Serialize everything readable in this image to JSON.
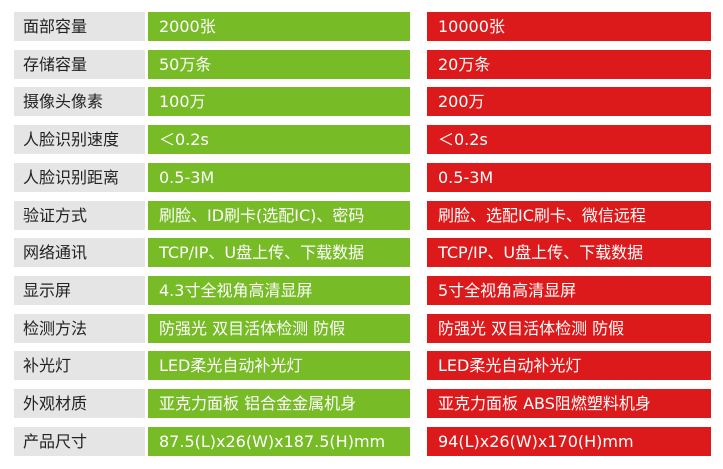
{
  "colors": {
    "label_bg": "#e5e5e5",
    "left_product": "#77bb26",
    "right_product": "#dd1a1b"
  },
  "rows": [
    {
      "label": "面部容量",
      "a": "2000张",
      "b": "10000张"
    },
    {
      "label": "存储容量",
      "a": "50万条",
      "b": "20万条"
    },
    {
      "label": "摄像头像素",
      "a": "100万",
      "b": "200万"
    },
    {
      "label": "人脸识别速度",
      "a": "＜0.2s",
      "b": "＜0.2s"
    },
    {
      "label": "人脸识别距离",
      "a": "0.5-3M",
      "b": "0.5-3M"
    },
    {
      "label": "验证方式",
      "a": "刷脸、ID刷卡(选配IC)、密码",
      "b": "刷脸、选配IC刷卡、微信远程"
    },
    {
      "label": "网络通讯",
      "a": "TCP/IP、U盘上传、下载数据",
      "b": "TCP/IP、U盘上传、下载数据"
    },
    {
      "label": "显示屏",
      "a": "4.3寸全视角高清显屏",
      "b": "5寸全视角高清显屏"
    },
    {
      "label": "检测方法",
      "a": "防强光 双目活体检测 防假",
      "b": "防强光 双目活体检测 防假"
    },
    {
      "label": "补光灯",
      "a": "LED柔光自动补光灯",
      "b": "LED柔光自动补光灯"
    },
    {
      "label": "外观材质",
      "a": "亚克力面板 铝合金金属机身",
      "b": "亚克力面板 ABS阻燃塑料机身"
    },
    {
      "label": "产品尺寸",
      "a": "87.5(L)x26(W)x187.5(H)mm",
      "b": "94(L)x26(W)x170(H)mm"
    }
  ]
}
